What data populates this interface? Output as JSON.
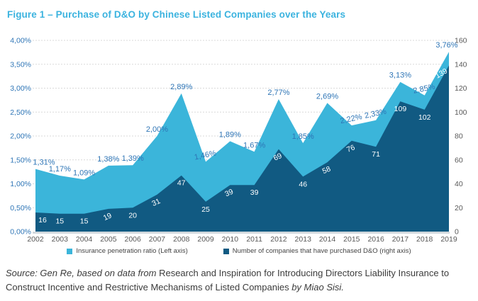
{
  "title": "Figure 1 – Purchase of D&O by Chinese Listed Companies over the Years",
  "colors": {
    "title_accent": "#3BB3DF",
    "value_label_blue": "#2E75B6",
    "axis_gray": "#595959",
    "gridline": "#D9D9D9",
    "baseline": "#CBD3D9",
    "area_light": "#3BB5DA",
    "area_dark": "#115A82",
    "count_label_white": "#FFFFFF"
  },
  "chart_data": {
    "type": "area",
    "categories": [
      2002,
      2003,
      2004,
      2005,
      2006,
      2007,
      2008,
      2009,
      2010,
      2011,
      2012,
      2013,
      2014,
      2015,
      2016,
      2017,
      2018,
      2019
    ],
    "series": [
      {
        "name": "Insurance penetration ratio (Left axis)",
        "axis": "left",
        "unit": "%",
        "color": "#3BB5DA",
        "values": [
          1.31,
          1.17,
          1.09,
          1.38,
          1.39,
          2.0,
          2.89,
          1.46,
          1.89,
          1.67,
          2.77,
          1.85,
          2.69,
          2.22,
          2.33,
          3.13,
          2.85,
          3.76
        ],
        "labels": [
          "1,31%",
          "1,17%",
          "1,09%",
          "1,38%",
          "1,39%",
          "2,00%",
          "2,89%",
          "1,46%",
          "1,89%",
          "1,67%",
          "2,77%",
          "1,85%",
          "2,69%",
          "2,22%",
          "2,33%",
          "3,13%",
          "2,85%",
          "3,76%"
        ]
      },
      {
        "name": "Number of companies that have purchased D&O (right axis)",
        "axis": "right",
        "color": "#115A82",
        "values": [
          16,
          15,
          15,
          19,
          20,
          31,
          47,
          25,
          39,
          39,
          69,
          46,
          58,
          76,
          71,
          109,
          102,
          139
        ],
        "labels": [
          "16",
          "15",
          "15",
          "19",
          "20",
          "31",
          "47",
          "25",
          "39",
          "39",
          "69",
          "46",
          "58",
          "76",
          "71",
          "109",
          "102",
          "139"
        ]
      }
    ],
    "left_axis": {
      "min": 0,
      "max": 4,
      "tick_labels": [
        "4,00%",
        "3,50%",
        "3,00%",
        "2,50%",
        "2,00%",
        "1,50%",
        "1,00%",
        "0,50%",
        "0,00%"
      ]
    },
    "right_axis": {
      "min": 0,
      "max": 160,
      "tick_labels": [
        "160",
        "140",
        "120",
        "100",
        "80",
        "60",
        "40",
        "20",
        "0"
      ]
    },
    "grid": {
      "horizontal": true,
      "style": "dashed"
    },
    "legend_position": "bottom"
  },
  "legend": {
    "items": [
      {
        "label": "Insurance penetration ratio (Left axis)",
        "color": "#3BB5DA"
      },
      {
        "label": "Number of companies that have purchased D&O (right axis)",
        "color": "#115A82"
      }
    ]
  },
  "source": {
    "italic_prefix": "Source: Gen Re, based on data from ",
    "regular_title": "Research and Inspiration for Introducing Directors Liability Insurance to Construct Incentive and Restrictive Mechanisms of Listed Companies ",
    "italic_suffix": "by Miao Sisi."
  }
}
